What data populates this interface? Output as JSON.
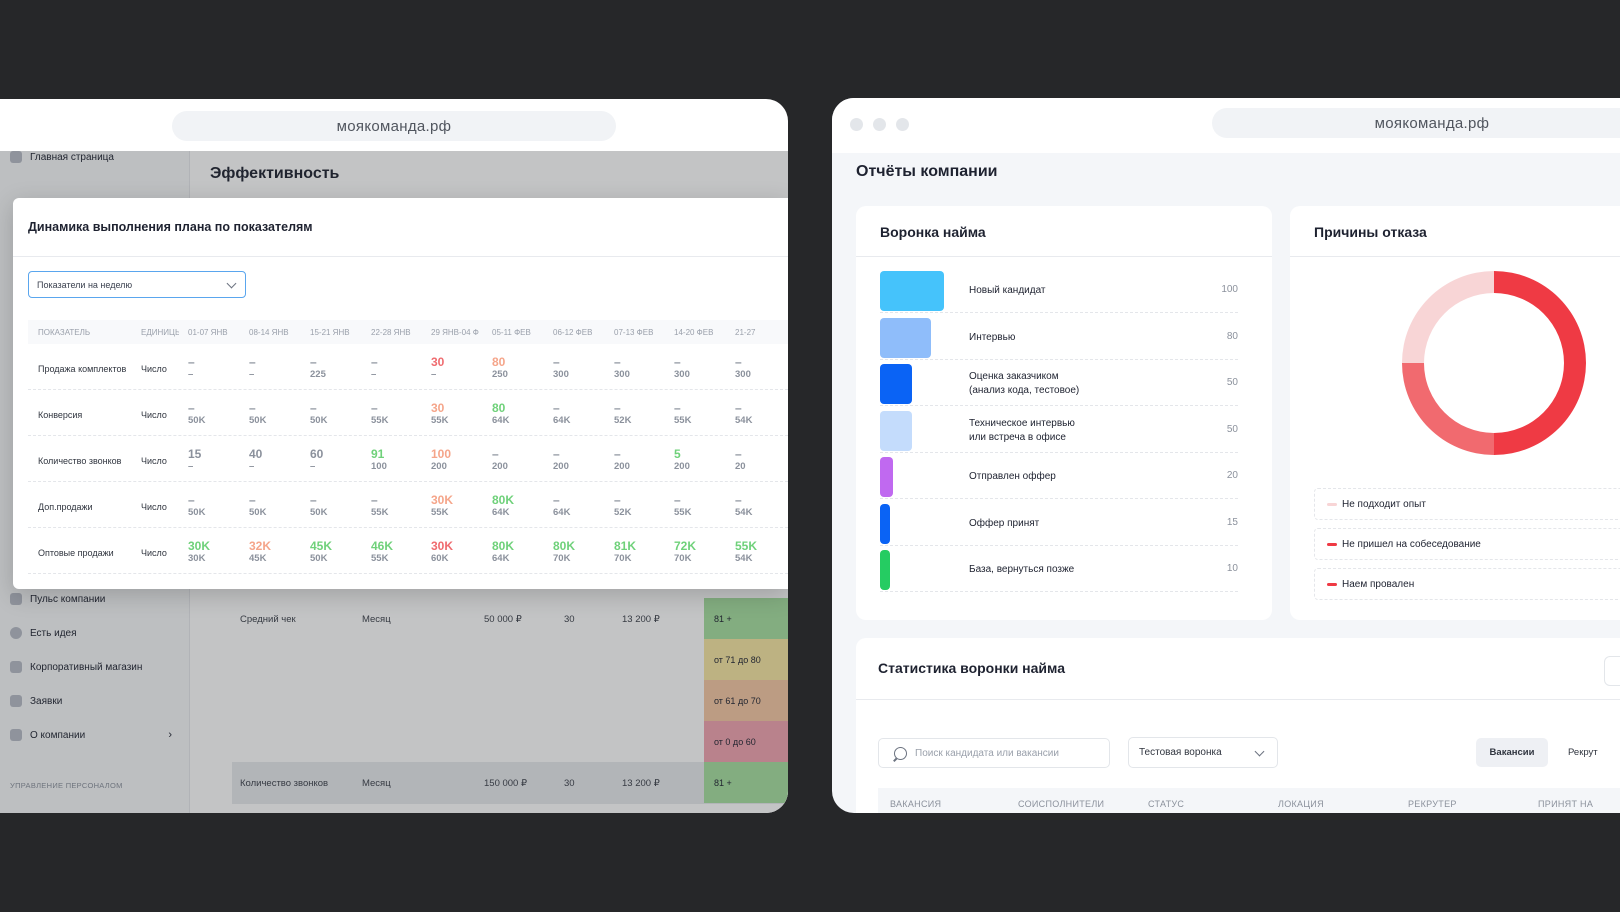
{
  "left_window": {
    "url": "моякоманда.рф",
    "page_title": "Эффективность",
    "sidebar": {
      "top_item": "Главная страница",
      "items": [
        "Пульс компании",
        "Есть идея",
        "Корпоративный магазин",
        "Заявки",
        "О компании"
      ],
      "section_caption": "УПРАВЛЕНИЕ ПЕРСОНАЛОМ"
    },
    "background_table": {
      "rows": [
        {
          "name": "Средний чек",
          "period": "Месяц",
          "plan": "50 000 ₽",
          "days": "30",
          "fact": "13 200 ₽"
        },
        {
          "name": "Количество звонков",
          "period": "Месяц",
          "plan": "150 000 ₽",
          "days": "30",
          "fact": "13 200 ₽"
        }
      ],
      "levels": [
        "81 +",
        "от 71 до 80",
        "от 61 до 70",
        "от 0 до 60",
        "81 +"
      ]
    },
    "modal": {
      "title": "Динамика выполнения плана по показателям",
      "select_value": "Показатели на неделю",
      "columns": [
        "ПОКАЗАТЕЛЬ",
        "ЕДИНИЦЫ",
        "01-07 ЯНВ",
        "08-14 ЯНВ",
        "15-21 ЯНВ",
        "22-28 ЯНВ",
        "29 ЯНВ-04 Ф",
        "05-11 ФЕВ",
        "06-12 ФЕВ",
        "07-13 ФЕВ",
        "14-20 ФЕВ",
        "21-27"
      ],
      "rows": [
        {
          "name": "Продажа комплектов",
          "unit": "Число",
          "cells": [
            [
              "–",
              "–"
            ],
            [
              "–",
              "–"
            ],
            [
              "–",
              "225"
            ],
            [
              "–",
              "–"
            ],
            [
              "30",
              "–"
            ],
            [
              "80",
              "250"
            ],
            [
              "–",
              "300"
            ],
            [
              "–",
              "300"
            ],
            [
              "–",
              "300"
            ],
            [
              "–",
              "300"
            ]
          ],
          "colors": [
            "n",
            "n",
            "n",
            "n",
            "r",
            "o",
            "n",
            "n",
            "n",
            "n"
          ]
        },
        {
          "name": "Конверсия",
          "unit": "Число",
          "cells": [
            [
              "–",
              "50K"
            ],
            [
              "–",
              "50K"
            ],
            [
              "–",
              "50K"
            ],
            [
              "–",
              "55K"
            ],
            [
              "30",
              "55K"
            ],
            [
              "80",
              "64K"
            ],
            [
              "–",
              "64K"
            ],
            [
              "–",
              "52K"
            ],
            [
              "–",
              "55K"
            ],
            [
              "–",
              "54K"
            ]
          ],
          "colors": [
            "n",
            "n",
            "n",
            "n",
            "o",
            "g",
            "n",
            "n",
            "n",
            "n"
          ]
        },
        {
          "name": "Количество звонков",
          "unit": "Число",
          "cells": [
            [
              "15",
              "–"
            ],
            [
              "40",
              "–"
            ],
            [
              "60",
              "–"
            ],
            [
              "91",
              "100"
            ],
            [
              "100",
              "200"
            ],
            [
              "–",
              "200"
            ],
            [
              "–",
              "200"
            ],
            [
              "–",
              "200"
            ],
            [
              "5",
              "200"
            ],
            [
              "–",
              "20"
            ]
          ],
          "colors": [
            "n",
            "n",
            "n",
            "g",
            "o",
            "n",
            "n",
            "n",
            "g",
            "n"
          ]
        },
        {
          "name": "Доп.продажи",
          "unit": "Число",
          "cells": [
            [
              "–",
              "50K"
            ],
            [
              "–",
              "50K"
            ],
            [
              "–",
              "50K"
            ],
            [
              "–",
              "55K"
            ],
            [
              "30K",
              "55K"
            ],
            [
              "80K",
              "64K"
            ],
            [
              "–",
              "64K"
            ],
            [
              "–",
              "52K"
            ],
            [
              "–",
              "55K"
            ],
            [
              "–",
              "54K"
            ]
          ],
          "colors": [
            "n",
            "n",
            "n",
            "n",
            "o",
            "g",
            "n",
            "n",
            "n",
            "n"
          ]
        },
        {
          "name": "Оптовые продажи",
          "unit": "Число",
          "cells": [
            [
              "30K",
              "30K"
            ],
            [
              "32K",
              "45K"
            ],
            [
              "45K",
              "50K"
            ],
            [
              "46K",
              "55K"
            ],
            [
              "30K",
              "60K"
            ],
            [
              "80K",
              "64K"
            ],
            [
              "80K",
              "70K"
            ],
            [
              "81K",
              "70K"
            ],
            [
              "72K",
              "70K"
            ],
            [
              "55K",
              "54K"
            ]
          ],
          "colors": [
            "g",
            "o",
            "g",
            "g",
            "r",
            "g",
            "g",
            "g",
            "g",
            "g"
          ]
        }
      ]
    }
  },
  "right_window": {
    "url": "моякоманда.рф",
    "page_title": "Отчёты компании",
    "funnel": {
      "title": "Воронка найма",
      "stages": [
        {
          "label": "Новый кандидат",
          "value": "100",
          "color": "#45c3fb"
        },
        {
          "label": "Интервью",
          "value": "80",
          "color": "#8fbdfa"
        },
        {
          "label": "Оценка заказчиком (анализ кода, тестовое)",
          "label_lines": [
            "Оценка заказчиком",
            "(анализ кода, тестовое)"
          ],
          "value": "50",
          "color": "#0a63f5"
        },
        {
          "label": "Техническое интервью или встреча в офисе",
          "label_lines": [
            "Техническое интервью",
            "или встреча в офисе"
          ],
          "value": "50",
          "color": "#c4dcfc"
        },
        {
          "label": "Отправлен оффер",
          "value": "20",
          "color": "#c069f0"
        },
        {
          "label": "Оффер принят",
          "value": "15",
          "color": "#0a63f5"
        },
        {
          "label": "База, вернуться позже",
          "value": "10",
          "color": "#25cc62"
        }
      ]
    },
    "reasons": {
      "title": "Причины отказа",
      "chart_data": {
        "type": "pie",
        "categories": [
          "Наем провален",
          "Не пришел на собеседование",
          "Не подходит опыт"
        ],
        "values": [
          50,
          25,
          25
        ],
        "colors": [
          "#ef3a44",
          "#f16a6f",
          "#f8d5d6"
        ]
      },
      "legend": [
        {
          "label": "Не подходит опыт",
          "color": "#f8d5d6"
        },
        {
          "label": "Не пришел на собеседование",
          "color": "#ef3a44"
        },
        {
          "label": "Наем провален",
          "color": "#ef3a44"
        }
      ]
    },
    "stats": {
      "title": "Статистика воронки найма",
      "search_placeholder": "Поиск кандидата или вакансии",
      "funnel_select": "Тестовая воронка",
      "tabs": [
        "Вакансии",
        "Рекрут"
      ],
      "columns": [
        "ВАКАНСИЯ",
        "СОИСПОЛНИТЕЛИ",
        "СТАТУС",
        "ЛОКАЦИЯ",
        "РЕКРУТЕР",
        "ПРИНЯТ НА"
      ]
    }
  }
}
